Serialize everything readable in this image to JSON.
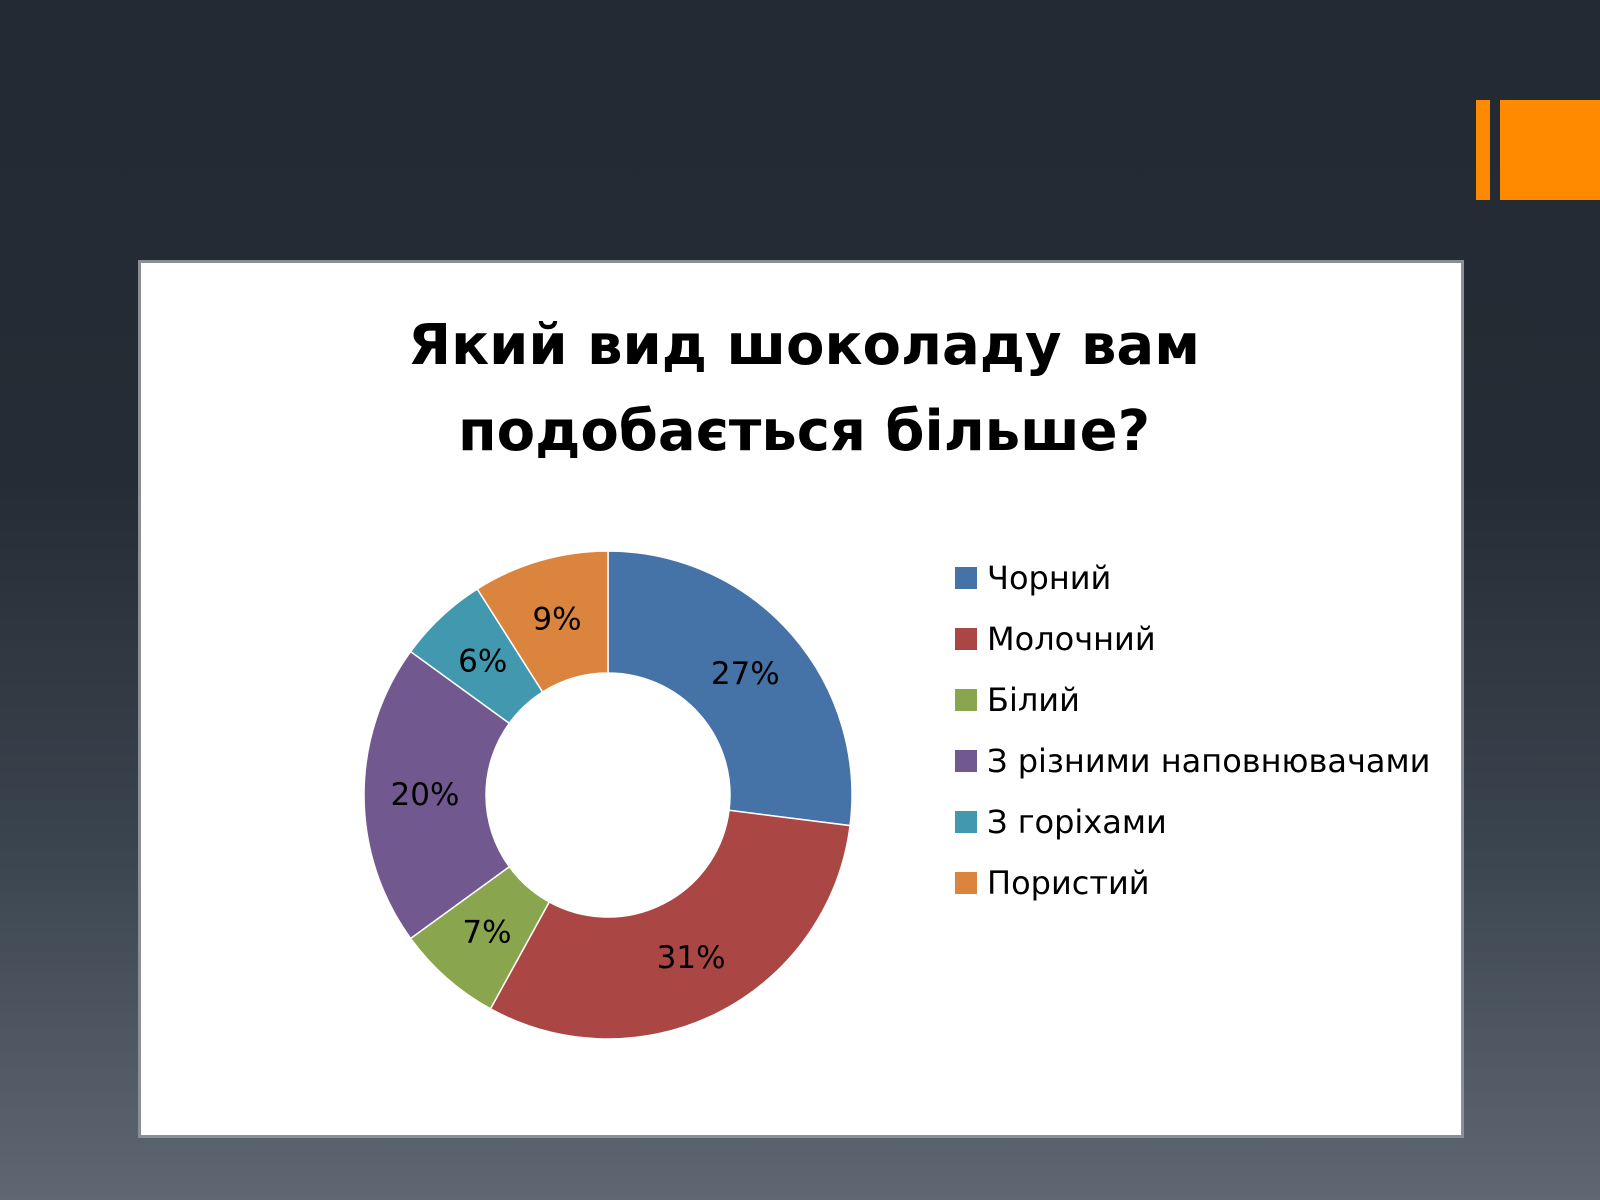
{
  "slide": {
    "accent_color": "#ff8a00"
  },
  "chart_data": {
    "type": "pie",
    "title_lines": [
      "Який вид шоколаду вам",
      "подобається більше?"
    ],
    "categories": [
      "Чорний",
      "Молочний",
      "Білий",
      "З різними наповнювачами",
      "З горіхами",
      "Пористий"
    ],
    "values": [
      27,
      31,
      7,
      20,
      6,
      9
    ],
    "labels": [
      "27%",
      "31%",
      "7%",
      "20%",
      "6%",
      "9%"
    ],
    "colors": [
      "#4572a7",
      "#aa4643",
      "#89a54e",
      "#71588f",
      "#4198af",
      "#db843d"
    ],
    "donut": true,
    "legend_position": "right"
  }
}
